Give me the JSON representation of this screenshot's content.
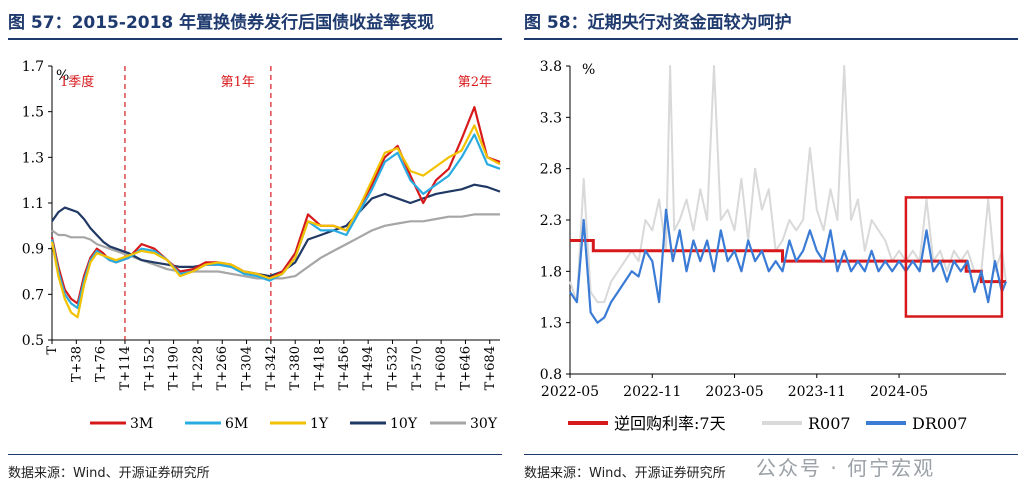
{
  "left_panel": {
    "title": "图 57：2015-2018 年置换债券发行后国债收益率表现",
    "source": "数据来源：Wind、开源证券研究所"
  },
  "right_panel": {
    "title": "图 58：近期央行对资金面较为呵护",
    "source": "数据来源：Wind、开源证券研究所",
    "watermark": "公众号 · 何宁宏观"
  },
  "colors": {
    "3M": "#d7191c",
    "6M": "#29abe2",
    "1Y": "#f2c200",
    "10Y": "#1f3864",
    "30Y": "#a6a6a6",
    "policy": "#d7191c",
    "R007": "#d9d9d9",
    "DR007": "#3a7bd5",
    "highlight": "#d7191c",
    "divider": "#d7191c"
  },
  "chart_data": [
    {
      "type": "line",
      "title": "",
      "ylabel": "%",
      "xlabel": "",
      "ylim": [
        0.5,
        1.7
      ],
      "yticks": [
        "0.5",
        "0.7",
        "0.9",
        "1.1",
        "1.3",
        "1.5",
        "1.7"
      ],
      "xlim": [
        0,
        700
      ],
      "xticks": [
        "T",
        "T+38",
        "T+76",
        "T+114",
        "T+152",
        "T+190",
        "T+228",
        "T+266",
        "T+304",
        "T+342",
        "T+380",
        "T+418",
        "T+456",
        "T+494",
        "T+532",
        "T+570",
        "T+608",
        "T+646",
        "T+684"
      ],
      "xtick_values": [
        0,
        38,
        76,
        114,
        152,
        190,
        228,
        266,
        304,
        342,
        380,
        418,
        456,
        494,
        532,
        570,
        608,
        646,
        684
      ],
      "dividers": [
        {
          "x": 114,
          "label": "1季度"
        },
        {
          "x": 342,
          "label": "第1年"
        },
        {
          "x": 700,
          "label": "第2年"
        }
      ],
      "legend_position": "bottom",
      "x": [
        0,
        10,
        20,
        30,
        40,
        50,
        60,
        70,
        80,
        90,
        100,
        120,
        140,
        160,
        180,
        200,
        220,
        240,
        260,
        280,
        300,
        320,
        340,
        360,
        380,
        400,
        420,
        440,
        460,
        480,
        500,
        520,
        540,
        560,
        580,
        600,
        620,
        640,
        660,
        680,
        700
      ],
      "series": [
        {
          "name": "3M",
          "values": [
            0.95,
            0.82,
            0.72,
            0.68,
            0.66,
            0.78,
            0.86,
            0.9,
            0.88,
            0.85,
            0.84,
            0.86,
            0.92,
            0.9,
            0.85,
            0.8,
            0.81,
            0.84,
            0.84,
            0.83,
            0.8,
            0.79,
            0.77,
            0.8,
            0.88,
            1.05,
            1.0,
            1.0,
            0.98,
            1.08,
            1.18,
            1.3,
            1.35,
            1.22,
            1.1,
            1.2,
            1.25,
            1.38,
            1.52,
            1.3,
            1.28
          ]
        },
        {
          "name": "6M",
          "values": [
            0.94,
            0.8,
            0.7,
            0.66,
            0.64,
            0.76,
            0.85,
            0.89,
            0.87,
            0.85,
            0.84,
            0.86,
            0.9,
            0.89,
            0.85,
            0.79,
            0.8,
            0.83,
            0.83,
            0.82,
            0.79,
            0.78,
            0.76,
            0.79,
            0.86,
            1.02,
            0.98,
            0.98,
            0.96,
            1.06,
            1.16,
            1.28,
            1.32,
            1.2,
            1.14,
            1.18,
            1.22,
            1.3,
            1.4,
            1.27,
            1.25
          ]
        },
        {
          "name": "1Y",
          "values": [
            0.93,
            0.78,
            0.68,
            0.62,
            0.6,
            0.74,
            0.84,
            0.88,
            0.87,
            0.86,
            0.85,
            0.87,
            0.89,
            0.88,
            0.85,
            0.78,
            0.8,
            0.83,
            0.84,
            0.83,
            0.8,
            0.79,
            0.77,
            0.79,
            0.86,
            1.02,
            1.0,
            1.0,
            0.98,
            1.08,
            1.2,
            1.32,
            1.34,
            1.24,
            1.22,
            1.26,
            1.3,
            1.33,
            1.44,
            1.3,
            1.27
          ]
        },
        {
          "name": "10Y",
          "values": [
            1.02,
            1.06,
            1.08,
            1.07,
            1.06,
            1.03,
            0.99,
            0.96,
            0.93,
            0.91,
            0.9,
            0.88,
            0.85,
            0.84,
            0.83,
            0.82,
            0.82,
            0.83,
            0.83,
            0.82,
            0.8,
            0.79,
            0.78,
            0.8,
            0.84,
            0.94,
            0.96,
            0.98,
            1.0,
            1.06,
            1.12,
            1.14,
            1.12,
            1.1,
            1.12,
            1.14,
            1.15,
            1.16,
            1.18,
            1.17,
            1.15
          ]
        },
        {
          "name": "30Y",
          "values": [
            0.98,
            0.96,
            0.96,
            0.95,
            0.95,
            0.95,
            0.94,
            0.92,
            0.91,
            0.9,
            0.89,
            0.87,
            0.85,
            0.83,
            0.81,
            0.8,
            0.8,
            0.8,
            0.8,
            0.79,
            0.78,
            0.77,
            0.77,
            0.77,
            0.78,
            0.82,
            0.86,
            0.89,
            0.92,
            0.95,
            0.98,
            1.0,
            1.01,
            1.02,
            1.02,
            1.03,
            1.04,
            1.04,
            1.05,
            1.05,
            1.05
          ]
        }
      ]
    },
    {
      "type": "line",
      "title": "",
      "ylabel": "%",
      "xlabel": "",
      "ylim": [
        0.8,
        3.8
      ],
      "yticks": [
        "0.8",
        "1.3",
        "1.8",
        "2.3",
        "2.8",
        "3.3",
        "3.8"
      ],
      "xlim": [
        "2022-05",
        "2024-12"
      ],
      "xticks": [
        "2022-05",
        "2022-11",
        "2023-05",
        "2023-11",
        "2024-05"
      ],
      "xtick_values": [
        0,
        6,
        12,
        18,
        24
      ],
      "xmax_month": 31.8,
      "highlight_box": {
        "x": [
          24.5,
          31.5
        ],
        "y": [
          1.36,
          2.52
        ]
      },
      "legend_position": "bottom",
      "series": [
        {
          "name": "逆回购利率:7天",
          "step": true,
          "x": [
            0,
            1.7,
            1.7,
            3.5,
            3.5,
            15.5,
            15.5,
            28.9,
            28.9,
            30.0,
            30.0,
            31.8
          ],
          "values": [
            2.1,
            2.1,
            2.0,
            2.0,
            2.0,
            2.0,
            1.9,
            1.9,
            1.8,
            1.8,
            1.7,
            1.7
          ]
        },
        {
          "name": "R007",
          "x": [
            0,
            0.5,
            1.0,
            1.5,
            2.0,
            2.5,
            3.0,
            3.5,
            4.0,
            4.5,
            5.0,
            5.5,
            6.0,
            6.5,
            7.0,
            7.3,
            7.6,
            8.0,
            8.5,
            9.0,
            9.5,
            10.0,
            10.5,
            11.0,
            11.5,
            12.0,
            12.5,
            13.0,
            13.5,
            14.0,
            14.5,
            15.0,
            15.5,
            16.0,
            16.5,
            17.0,
            17.5,
            18.0,
            18.5,
            19.0,
            19.5,
            20.0,
            20.5,
            21.0,
            21.5,
            22.0,
            22.5,
            23.0,
            23.5,
            24.0,
            24.5,
            25.0,
            25.5,
            26.0,
            26.5,
            27.0,
            27.5,
            28.0,
            28.5,
            29.0,
            29.5,
            30.0,
            30.5,
            31.0,
            31.5,
            31.8
          ],
          "values": [
            1.7,
            1.5,
            2.7,
            1.6,
            1.5,
            1.5,
            1.7,
            1.8,
            1.9,
            2.0,
            1.9,
            2.3,
            2.2,
            2.5,
            2.0,
            3.8,
            2.2,
            2.3,
            2.5,
            2.2,
            2.6,
            2.3,
            3.8,
            2.3,
            2.4,
            2.2,
            2.7,
            2.1,
            2.8,
            2.4,
            2.6,
            2.0,
            2.1,
            2.3,
            2.2,
            2.3,
            3.0,
            2.4,
            2.2,
            2.6,
            2.3,
            3.8,
            2.3,
            2.5,
            2.0,
            2.3,
            2.2,
            2.1,
            1.9,
            2.0,
            1.9,
            2.0,
            1.9,
            2.5,
            1.9,
            2.0,
            1.8,
            2.0,
            1.9,
            2.0,
            1.8,
            1.8,
            2.5,
            1.8,
            2.0,
            1.7
          ]
        },
        {
          "name": "DR007",
          "x": [
            0,
            0.5,
            1.0,
            1.5,
            2.0,
            2.5,
            3.0,
            3.5,
            4.0,
            4.5,
            5.0,
            5.5,
            6.0,
            6.5,
            7.0,
            7.5,
            8.0,
            8.5,
            9.0,
            9.5,
            10.0,
            10.5,
            11.0,
            11.5,
            12.0,
            12.5,
            13.0,
            13.5,
            14.0,
            14.5,
            15.0,
            15.5,
            16.0,
            16.5,
            17.0,
            17.5,
            18.0,
            18.5,
            19.0,
            19.5,
            20.0,
            20.5,
            21.0,
            21.5,
            22.0,
            22.5,
            23.0,
            23.5,
            24.0,
            24.5,
            25.0,
            25.5,
            26.0,
            26.5,
            27.0,
            27.5,
            28.0,
            28.5,
            29.0,
            29.5,
            30.0,
            30.5,
            31.0,
            31.5,
            31.8
          ],
          "values": [
            1.6,
            1.5,
            2.3,
            1.4,
            1.3,
            1.35,
            1.5,
            1.6,
            1.7,
            1.8,
            1.75,
            2.0,
            1.9,
            1.5,
            2.4,
            1.9,
            2.2,
            1.8,
            2.1,
            1.9,
            2.1,
            1.8,
            2.2,
            1.9,
            2.0,
            1.8,
            2.1,
            1.9,
            2.0,
            1.8,
            1.9,
            1.8,
            2.1,
            1.9,
            2.0,
            2.2,
            2.0,
            1.9,
            2.2,
            1.8,
            2.0,
            1.8,
            1.9,
            1.8,
            2.0,
            1.8,
            1.9,
            1.8,
            1.9,
            1.8,
            1.9,
            1.8,
            2.2,
            1.8,
            1.9,
            1.7,
            1.9,
            1.8,
            1.9,
            1.6,
            1.8,
            1.5,
            1.9,
            1.6,
            1.7
          ]
        }
      ]
    }
  ]
}
